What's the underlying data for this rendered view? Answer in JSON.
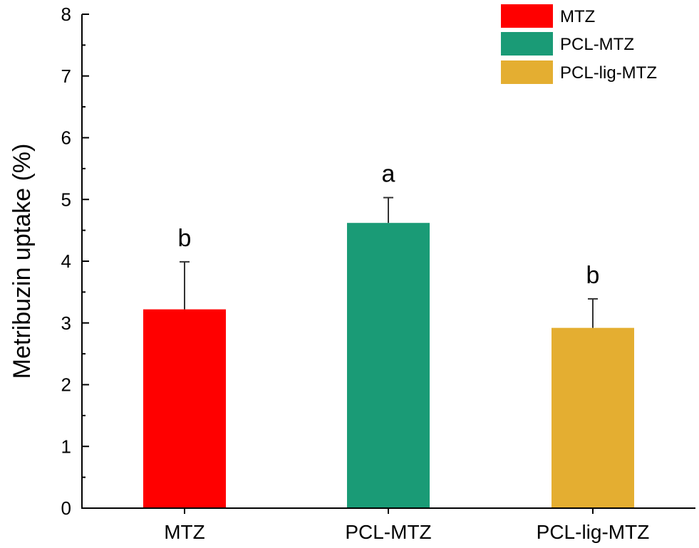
{
  "chart_data": {
    "type": "bar",
    "title": "",
    "xlabel": "",
    "ylabel": "Metribuzin uptake (%)",
    "ylim": [
      0,
      8
    ],
    "yticks": [
      "0",
      "1",
      "2",
      "3",
      "4",
      "5",
      "6",
      "7",
      "8"
    ],
    "categories": [
      "MTZ",
      "PCL-MTZ",
      "PCL-lig-MTZ"
    ],
    "values": [
      3.22,
      4.62,
      2.92
    ],
    "errors": [
      0.77,
      0.41,
      0.47
    ],
    "significance": [
      "b",
      "a",
      "b"
    ],
    "colors": [
      "#ff0000",
      "#1a9b76",
      "#e4ae31"
    ],
    "legend": {
      "position": "top-right",
      "entries": [
        "MTZ",
        "PCL-MTZ",
        "PCL-lig-MTZ"
      ]
    },
    "grid": false
  }
}
